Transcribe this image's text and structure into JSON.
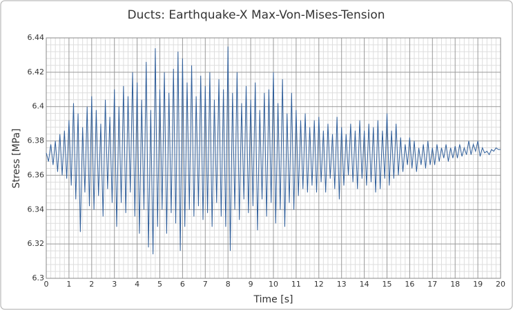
{
  "chart_data": {
    "type": "line",
    "title": "Ducts:   Earthquake-X   Max-Von-Mises-Tension",
    "x_label": "Time [s]",
    "y_label": "Stress [MPa]",
    "xlim": [
      0,
      20
    ],
    "ylim": [
      6.3,
      6.44
    ],
    "xticks": [
      0,
      1,
      2,
      3,
      4,
      5,
      6,
      7,
      8,
      9,
      10,
      11,
      12,
      13,
      14,
      15,
      16,
      17,
      18,
      19,
      20
    ],
    "yticks": [
      6.3,
      6.32,
      6.34,
      6.36,
      6.38,
      6.4,
      6.42,
      6.44
    ],
    "grid": true,
    "minor_grid": true,
    "x": [
      0,
      0.1,
      0.2,
      0.3,
      0.4,
      0.5,
      0.6,
      0.7,
      0.8,
      0.9,
      1,
      1.1,
      1.2,
      1.3,
      1.4,
      1.5,
      1.6,
      1.7,
      1.8,
      1.9,
      2,
      2.1,
      2.2,
      2.3,
      2.4,
      2.5,
      2.6,
      2.7,
      2.8,
      2.9,
      3,
      3.1,
      3.2,
      3.3,
      3.4,
      3.5,
      3.6,
      3.7,
      3.8,
      3.9,
      4,
      4.1,
      4.2,
      4.3,
      4.4,
      4.5,
      4.6,
      4.7,
      4.8,
      4.9,
      5,
      5.1,
      5.2,
      5.3,
      5.4,
      5.5,
      5.6,
      5.7,
      5.8,
      5.9,
      6,
      6.1,
      6.2,
      6.3,
      6.4,
      6.5,
      6.6,
      6.7,
      6.8,
      6.9,
      7,
      7.1,
      7.2,
      7.3,
      7.4,
      7.5,
      7.6,
      7.7,
      7.8,
      7.9,
      8,
      8.1,
      8.2,
      8.3,
      8.4,
      8.5,
      8.6,
      8.7,
      8.8,
      8.9,
      9,
      9.1,
      9.2,
      9.3,
      9.4,
      9.5,
      9.6,
      9.7,
      9.8,
      9.9,
      10,
      10.1,
      10.2,
      10.3,
      10.4,
      10.5,
      10.6,
      10.7,
      10.8,
      10.9,
      11,
      11.1,
      11.2,
      11.3,
      11.4,
      11.5,
      11.6,
      11.7,
      11.8,
      11.9,
      12,
      12.1,
      12.2,
      12.3,
      12.4,
      12.5,
      12.6,
      12.7,
      12.8,
      12.9,
      13,
      13.1,
      13.2,
      13.3,
      13.4,
      13.5,
      13.6,
      13.7,
      13.8,
      13.9,
      14,
      14.1,
      14.2,
      14.3,
      14.4,
      14.5,
      14.6,
      14.7,
      14.8,
      14.9,
      15,
      15.1,
      15.2,
      15.3,
      15.4,
      15.5,
      15.6,
      15.7,
      15.8,
      15.9,
      16,
      16.1,
      16.2,
      16.3,
      16.4,
      16.5,
      16.6,
      16.7,
      16.8,
      16.9,
      17,
      17.1,
      17.2,
      17.3,
      17.4,
      17.5,
      17.6,
      17.7,
      17.8,
      17.9,
      18,
      18.1,
      18.2,
      18.3,
      18.4,
      18.5,
      18.6,
      18.7,
      18.8,
      18.9,
      19,
      19.1,
      19.2,
      19.3,
      19.4,
      19.5,
      19.6,
      19.7,
      19.8,
      19.9,
      20
    ],
    "series": [
      {
        "color": "#2e5d99",
        "values": [
          6.373,
          6.368,
          6.378,
          6.366,
          6.38,
          6.362,
          6.384,
          6.36,
          6.386,
          6.358,
          6.392,
          6.354,
          6.402,
          6.346,
          6.396,
          6.327,
          6.388,
          6.35,
          6.4,
          6.342,
          6.406,
          6.34,
          6.398,
          6.348,
          6.39,
          6.336,
          6.404,
          6.352,
          6.394,
          6.344,
          6.41,
          6.33,
          6.4,
          6.344,
          6.412,
          6.338,
          6.406,
          6.35,
          6.42,
          6.336,
          6.414,
          6.326,
          6.404,
          6.34,
          6.426,
          6.318,
          6.398,
          6.314,
          6.434,
          6.33,
          6.41,
          6.34,
          6.42,
          6.326,
          6.408,
          6.338,
          6.422,
          6.332,
          6.432,
          6.316,
          6.428,
          6.33,
          6.414,
          6.34,
          6.424,
          6.336,
          6.406,
          6.342,
          6.418,
          6.334,
          6.412,
          6.338,
          6.42,
          6.33,
          6.404,
          6.344,
          6.416,
          6.336,
          6.41,
          6.33,
          6.435,
          6.316,
          6.408,
          6.34,
          6.42,
          6.334,
          6.402,
          6.346,
          6.412,
          6.338,
          6.404,
          6.342,
          6.414,
          6.328,
          6.398,
          6.346,
          6.408,
          6.336,
          6.41,
          6.344,
          6.42,
          6.332,
          6.402,
          6.34,
          6.416,
          6.33,
          6.396,
          6.344,
          6.408,
          6.34,
          6.398,
          6.348,
          6.392,
          6.352,
          6.396,
          6.35,
          6.388,
          6.354,
          6.392,
          6.35,
          6.394,
          6.356,
          6.386,
          6.35,
          6.39,
          6.358,
          6.384,
          6.352,
          6.394,
          6.346,
          6.388,
          6.354,
          6.384,
          6.36,
          6.39,
          6.356,
          6.386,
          6.352,
          6.392,
          6.358,
          6.386,
          6.354,
          6.39,
          6.356,
          6.388,
          6.35,
          6.392,
          6.352,
          6.386,
          6.358,
          6.396,
          6.354,
          6.386,
          6.358,
          6.39,
          6.36,
          6.382,
          6.362,
          6.378,
          6.366,
          6.382,
          6.364,
          6.38,
          6.362,
          6.376,
          6.366,
          6.378,
          6.364,
          6.38,
          6.366,
          6.376,
          6.366,
          6.378,
          6.368,
          6.376,
          6.37,
          6.378,
          6.368,
          6.376,
          6.37,
          6.377,
          6.37,
          6.378,
          6.371,
          6.376,
          6.372,
          6.38,
          6.372,
          6.378,
          6.374,
          6.38,
          6.371,
          6.376,
          6.373,
          6.374,
          6.372,
          6.375,
          6.374,
          6.376,
          6.375,
          6.375
        ]
      }
    ]
  }
}
